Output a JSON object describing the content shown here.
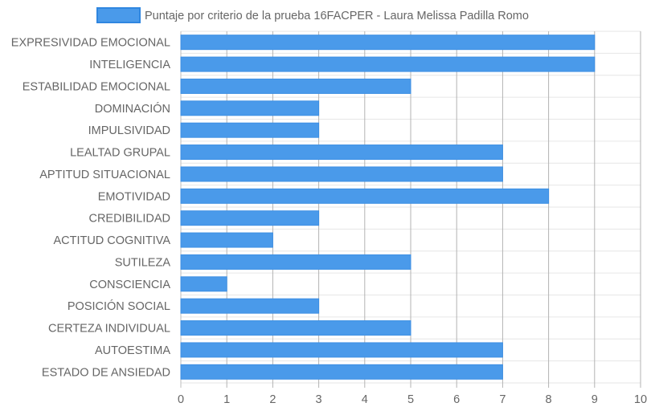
{
  "chart_data": {
    "type": "bar",
    "orientation": "horizontal",
    "legend": {
      "position": "top",
      "series_name": "Puntaje por criterio de la prueba 16FACPER - Laura Melissa Padilla Romo"
    },
    "categories": [
      "EXPRESIVIDAD EMOCIONAL",
      "INTELIGENCIA",
      "ESTABILIDAD EMOCIONAL",
      "DOMINACIÓN",
      "IMPULSIVIDAD",
      "LEALTAD GRUPAL",
      "APTITUD SITUACIONAL",
      "EMOTIVIDAD",
      "CREDIBILIDAD",
      "ACTITUD COGNITIVA",
      "SUTILEZA",
      "CONSCIENCIA",
      "POSICIÓN SOCIAL",
      "CERTEZA INDIVIDUAL",
      "AUTOESTIMA",
      "ESTADO DE ANSIEDAD"
    ],
    "series": [
      {
        "name": "Puntaje por criterio de la prueba 16FACPER - Laura Melissa Padilla Romo",
        "values": [
          9,
          9,
          5,
          3,
          3,
          7,
          7,
          8,
          3,
          2,
          5,
          1,
          3,
          5,
          7,
          7
        ],
        "color": "#4a9aea"
      }
    ],
    "xlim": [
      0,
      10
    ],
    "xticks": [
      "0",
      "1",
      "2",
      "3",
      "4",
      "5",
      "6",
      "7",
      "8",
      "9",
      "10"
    ],
    "grid": true
  }
}
